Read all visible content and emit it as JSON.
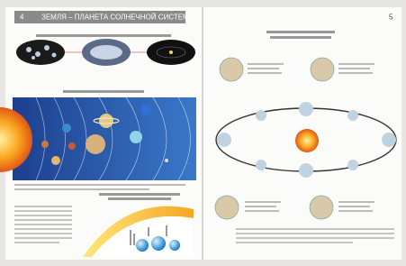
{
  "header": {
    "left_page_number": "4",
    "title": "ЗЕМЛЯ – ПЛАНЕТА СОЛНЕЧНОЙ СИСТЕМЫ",
    "right_page_number": "5"
  }
}
